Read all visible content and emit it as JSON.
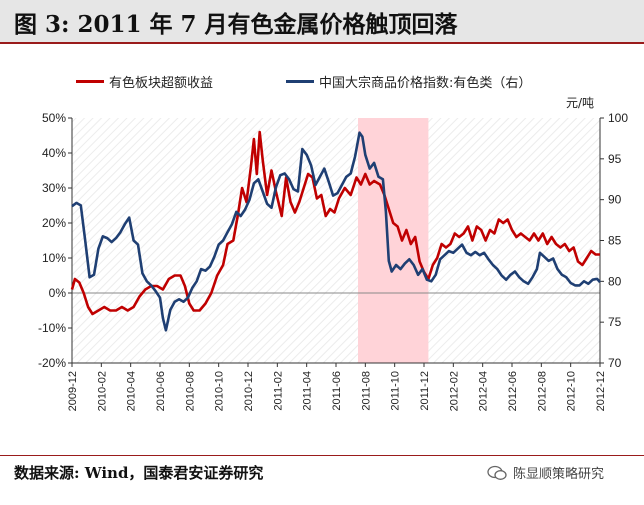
{
  "header": {
    "title": "图 3:  2011 年 7 月有色金属价格触顶回落"
  },
  "footer": {
    "source": "数据来源:  Wind，国泰君安证券研究",
    "watermark": "陈显顺策略研究"
  },
  "chart_data": {
    "type": "line",
    "title": "图 3:  2011 年 7 月有色金属价格触顶回落",
    "unit_right": "元/吨",
    "x_tick_labels": [
      "2009-12",
      "2010-02",
      "2010-04",
      "2010-06",
      "2010-08",
      "2010-10",
      "2010-12",
      "2011-02",
      "2011-04",
      "2011-06",
      "2011-08",
      "2011-10",
      "2011-12",
      "2012-02",
      "2012-04",
      "2012-06",
      "2012-08",
      "2012-10",
      "2012-12"
    ],
    "x_range": [
      0,
      36
    ],
    "y_left": {
      "ticks": [
        "-20%",
        "-10%",
        "0%",
        "10%",
        "20%",
        "30%",
        "40%",
        "50%"
      ],
      "range": [
        -20,
        50
      ]
    },
    "y_right": {
      "ticks": [
        "70",
        "75",
        "80",
        "85",
        "90",
        "95",
        "100"
      ],
      "range": [
        70,
        100
      ]
    },
    "highlight": {
      "from": 19.5,
      "to": 24.3,
      "color": "#ffd3d8"
    },
    "series": [
      {
        "name": "有色板块超额收益",
        "axis": "left",
        "color": "#c00000",
        "points": [
          [
            0,
            1
          ],
          [
            0.2,
            4
          ],
          [
            0.5,
            3
          ],
          [
            0.8,
            0
          ],
          [
            1.1,
            -4
          ],
          [
            1.4,
            -6
          ],
          [
            1.8,
            -5
          ],
          [
            2.2,
            -4
          ],
          [
            2.6,
            -5
          ],
          [
            3,
            -5
          ],
          [
            3.4,
            -4
          ],
          [
            3.8,
            -5
          ],
          [
            4.2,
            -4
          ],
          [
            4.6,
            -1
          ],
          [
            5,
            1
          ],
          [
            5.4,
            2
          ],
          [
            5.8,
            2
          ],
          [
            6.2,
            1
          ],
          [
            6.6,
            4
          ],
          [
            7,
            5
          ],
          [
            7.4,
            5
          ],
          [
            7.7,
            2
          ],
          [
            8,
            -3
          ],
          [
            8.3,
            -5
          ],
          [
            8.7,
            -5
          ],
          [
            9.1,
            -3
          ],
          [
            9.5,
            0
          ],
          [
            9.9,
            5
          ],
          [
            10.3,
            8
          ],
          [
            10.6,
            14
          ],
          [
            11,
            15
          ],
          [
            11.3,
            22
          ],
          [
            11.6,
            30
          ],
          [
            11.9,
            26
          ],
          [
            12.2,
            36
          ],
          [
            12.4,
            44
          ],
          [
            12.6,
            34
          ],
          [
            12.8,
            46
          ],
          [
            13,
            38
          ],
          [
            13.3,
            28
          ],
          [
            13.6,
            35
          ],
          [
            13.9,
            29
          ],
          [
            14.3,
            22
          ],
          [
            14.6,
            33
          ],
          [
            14.9,
            26
          ],
          [
            15.2,
            23
          ],
          [
            15.5,
            26
          ],
          [
            15.8,
            30
          ],
          [
            16.1,
            34
          ],
          [
            16.4,
            33
          ],
          [
            16.7,
            27
          ],
          [
            17,
            28
          ],
          [
            17.3,
            22
          ],
          [
            17.6,
            24
          ],
          [
            17.9,
            23
          ],
          [
            18.2,
            27
          ],
          [
            18.6,
            30
          ],
          [
            19,
            28
          ],
          [
            19.4,
            33
          ],
          [
            19.7,
            31
          ],
          [
            20,
            34
          ],
          [
            20.3,
            31
          ],
          [
            20.6,
            32
          ],
          [
            21,
            31
          ],
          [
            21.3,
            28
          ],
          [
            21.6,
            24
          ],
          [
            21.9,
            20
          ],
          [
            22.2,
            19
          ],
          [
            22.5,
            15
          ],
          [
            22.8,
            18
          ],
          [
            23.1,
            14
          ],
          [
            23.4,
            16
          ],
          [
            23.7,
            9
          ],
          [
            24,
            6
          ],
          [
            24.3,
            4
          ],
          [
            24.6,
            8
          ],
          [
            24.9,
            10
          ],
          [
            25.2,
            14
          ],
          [
            25.5,
            13
          ],
          [
            25.8,
            14
          ],
          [
            26.1,
            17
          ],
          [
            26.4,
            16
          ],
          [
            26.7,
            17
          ],
          [
            27,
            19
          ],
          [
            27.3,
            15
          ],
          [
            27.6,
            19
          ],
          [
            27.9,
            18
          ],
          [
            28.2,
            15
          ],
          [
            28.5,
            18
          ],
          [
            28.8,
            17
          ],
          [
            29.1,
            21
          ],
          [
            29.4,
            20
          ],
          [
            29.7,
            21
          ],
          [
            30,
            18
          ],
          [
            30.3,
            16
          ],
          [
            30.6,
            17
          ],
          [
            30.9,
            16
          ],
          [
            31.2,
            15
          ],
          [
            31.5,
            17
          ],
          [
            31.8,
            15
          ],
          [
            32.1,
            17
          ],
          [
            32.4,
            14
          ],
          [
            32.7,
            16
          ],
          [
            33,
            14
          ],
          [
            33.3,
            13
          ],
          [
            33.6,
            14
          ],
          [
            33.9,
            12
          ],
          [
            34.2,
            13
          ],
          [
            34.5,
            9
          ],
          [
            34.8,
            8
          ],
          [
            35.1,
            10
          ],
          [
            35.4,
            12
          ],
          [
            35.7,
            11
          ],
          [
            36,
            11
          ]
        ]
      },
      {
        "name": "中国大宗商品价格指数:有色类（右）",
        "axis": "right",
        "color": "#1f3f73",
        "points": [
          [
            0,
            89.2
          ],
          [
            0.3,
            89.6
          ],
          [
            0.6,
            89.3
          ],
          [
            0.9,
            85
          ],
          [
            1.2,
            80.5
          ],
          [
            1.5,
            80.8
          ],
          [
            1.8,
            84
          ],
          [
            2.1,
            85.5
          ],
          [
            2.4,
            85.3
          ],
          [
            2.7,
            84.8
          ],
          [
            3,
            85.3
          ],
          [
            3.3,
            86
          ],
          [
            3.6,
            87
          ],
          [
            3.9,
            87.8
          ],
          [
            4.2,
            85
          ],
          [
            4.5,
            84.5
          ],
          [
            4.8,
            81
          ],
          [
            5.1,
            80
          ],
          [
            5.4,
            79.5
          ],
          [
            5.7,
            78.8
          ],
          [
            6,
            78
          ],
          [
            6.2,
            75.5
          ],
          [
            6.4,
            74
          ],
          [
            6.7,
            76.5
          ],
          [
            7,
            77.5
          ],
          [
            7.3,
            77.8
          ],
          [
            7.6,
            77.5
          ],
          [
            7.9,
            78
          ],
          [
            8.2,
            79.2
          ],
          [
            8.5,
            80
          ],
          [
            8.8,
            81.5
          ],
          [
            9.1,
            81.3
          ],
          [
            9.4,
            81.8
          ],
          [
            9.7,
            83
          ],
          [
            10,
            84.5
          ],
          [
            10.3,
            85
          ],
          [
            10.6,
            86
          ],
          [
            10.9,
            87
          ],
          [
            11.2,
            88.5
          ],
          [
            11.5,
            88
          ],
          [
            11.8,
            88.8
          ],
          [
            12.1,
            90
          ],
          [
            12.4,
            92
          ],
          [
            12.7,
            92.5
          ],
          [
            13,
            91
          ],
          [
            13.3,
            89.5
          ],
          [
            13.6,
            89
          ],
          [
            13.9,
            91.5
          ],
          [
            14.2,
            93
          ],
          [
            14.5,
            93.2
          ],
          [
            14.8,
            92.5
          ],
          [
            15.1,
            91.3
          ],
          [
            15.4,
            91
          ],
          [
            15.7,
            96.2
          ],
          [
            16,
            95.5
          ],
          [
            16.3,
            94.2
          ],
          [
            16.6,
            91.8
          ],
          [
            16.9,
            92.8
          ],
          [
            17.2,
            93.8
          ],
          [
            17.5,
            92.2
          ],
          [
            17.8,
            90.5
          ],
          [
            18.1,
            90.8
          ],
          [
            18.4,
            91.8
          ],
          [
            18.7,
            92.8
          ],
          [
            19,
            93.2
          ],
          [
            19.3,
            95.3
          ],
          [
            19.6,
            98.2
          ],
          [
            19.8,
            97.7
          ],
          [
            20,
            95.5
          ],
          [
            20.3,
            93.8
          ],
          [
            20.6,
            94.5
          ],
          [
            20.9,
            92.8
          ],
          [
            21.2,
            92.5
          ],
          [
            21.4,
            88.5
          ],
          [
            21.6,
            82.5
          ],
          [
            21.8,
            81.2
          ],
          [
            22.1,
            82
          ],
          [
            22.4,
            81.5
          ],
          [
            22.7,
            82.2
          ],
          [
            23,
            82.7
          ],
          [
            23.3,
            82
          ],
          [
            23.6,
            80.8
          ],
          [
            23.9,
            81.5
          ],
          [
            24.2,
            80.2
          ],
          [
            24.5,
            80
          ],
          [
            24.8,
            80.8
          ],
          [
            25.1,
            82.7
          ],
          [
            25.4,
            83.2
          ],
          [
            25.7,
            83.7
          ],
          [
            26,
            83.5
          ],
          [
            26.3,
            84
          ],
          [
            26.6,
            84.5
          ],
          [
            26.9,
            83.5
          ],
          [
            27.2,
            83.2
          ],
          [
            27.5,
            83.6
          ],
          [
            27.8,
            83.2
          ],
          [
            28.1,
            83.5
          ],
          [
            28.4,
            82.7
          ],
          [
            28.7,
            82
          ],
          [
            29,
            81.5
          ],
          [
            29.3,
            80.7
          ],
          [
            29.6,
            80.2
          ],
          [
            29.9,
            80.8
          ],
          [
            30.2,
            81.2
          ],
          [
            30.5,
            80.5
          ],
          [
            30.8,
            80
          ],
          [
            31.1,
            79.7
          ],
          [
            31.4,
            80.5
          ],
          [
            31.7,
            81.5
          ],
          [
            31.9,
            83.5
          ],
          [
            32.2,
            83
          ],
          [
            32.5,
            82.5
          ],
          [
            32.8,
            82.8
          ],
          [
            33.1,
            81.5
          ],
          [
            33.4,
            80.8
          ],
          [
            33.7,
            80.5
          ],
          [
            34,
            79.8
          ],
          [
            34.3,
            79.5
          ],
          [
            34.6,
            79.5
          ],
          [
            34.9,
            80
          ],
          [
            35.2,
            79.7
          ],
          [
            35.5,
            80.2
          ],
          [
            35.8,
            80.3
          ],
          [
            36,
            79.9
          ]
        ]
      }
    ]
  }
}
